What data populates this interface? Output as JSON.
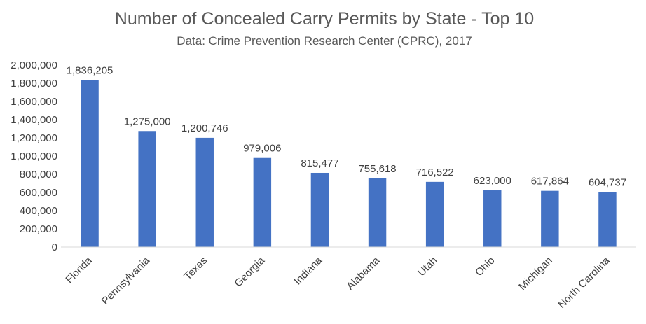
{
  "chart_data": {
    "type": "bar",
    "title": "Number of Concealed Carry Permits by State - Top 10",
    "subtitle": "Data: Crime Prevention Research Center (CPRC), 2017",
    "xlabel": "",
    "ylabel": "",
    "categories": [
      "Florida",
      "Pennsylvania",
      "Texas",
      "Georgia",
      "Indiana",
      "Alabama",
      "Utah",
      "Ohio",
      "Michigan",
      "North Carolina"
    ],
    "values": [
      1836205,
      1275000,
      1200746,
      979006,
      815477,
      755618,
      716522,
      623000,
      617864,
      604737
    ],
    "data_labels": [
      "1,836,205",
      "1,275,000",
      "1,200,746",
      "979,006",
      "815,477",
      "755,618",
      "716,522",
      "623,000",
      "617,864",
      "604,737"
    ],
    "y_ticks": [
      "0",
      "200,000",
      "400,000",
      "600,000",
      "800,000",
      "1,000,000",
      "1,200,000",
      "1,400,000",
      "1,600,000",
      "1,800,000",
      "2,000,000"
    ],
    "ylim": [
      0,
      2000000
    ],
    "grid": false,
    "legend": "none",
    "bar_color": "#4472C4",
    "axis_color": "#D9D9D9"
  }
}
